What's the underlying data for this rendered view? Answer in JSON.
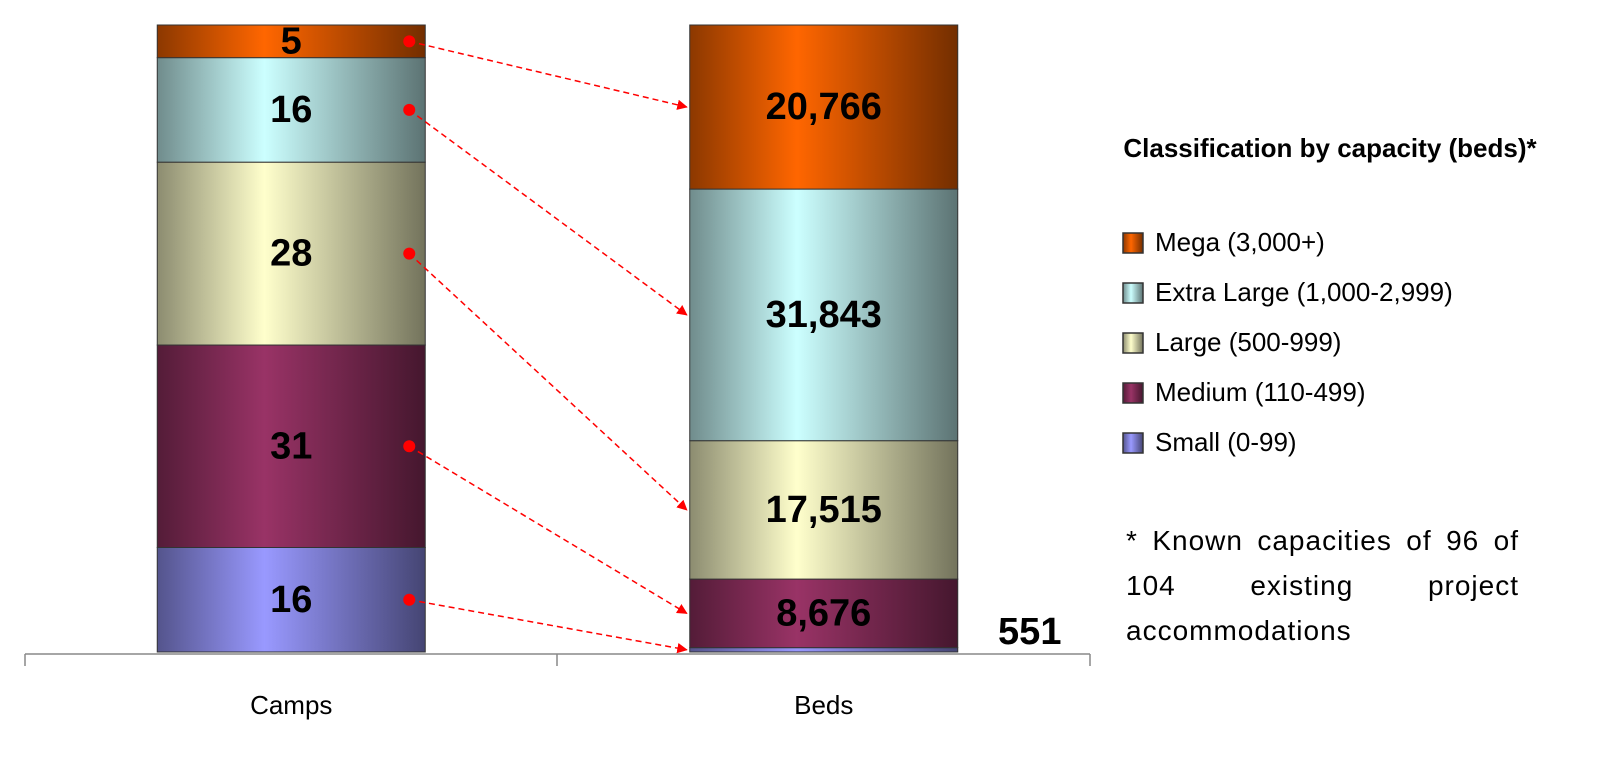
{
  "chart_data": {
    "type": "stacked_percent_bar",
    "categories": [
      "Camps",
      "Beds"
    ],
    "legend_title": "Classification by capacity (beds)*",
    "note": "* Known capacities of 96 of 104 existing project accommodations",
    "series": [
      {
        "name": "Small (0-99)",
        "color": "#9999ff",
        "values": [
          16,
          551
        ],
        "value_labels": [
          "16",
          "551"
        ]
      },
      {
        "name": "Medium (110-499)",
        "color": "#993366",
        "values": [
          31,
          8676
        ],
        "value_labels": [
          "31",
          "8,676"
        ]
      },
      {
        "name": "Large (500-999)",
        "color": "#ffffcc",
        "values": [
          28,
          17515
        ],
        "value_labels": [
          "28",
          "17,515"
        ]
      },
      {
        "name": "Extra Large (1,000-2,999)",
        "color": "#ccffff",
        "values": [
          16,
          31843
        ],
        "value_labels": [
          "16",
          "31,843"
        ]
      },
      {
        "name": "Mega (3,000+)",
        "color": "#ff6600",
        "values": [
          5,
          20766
        ],
        "value_labels": [
          "5",
          "20,766"
        ]
      }
    ]
  }
}
